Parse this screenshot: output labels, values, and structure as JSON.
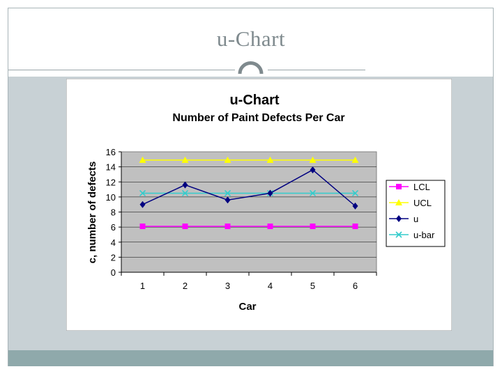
{
  "slide": {
    "title": "u-Chart"
  },
  "colors": {
    "frame_border": "#a8b4b8",
    "content_bg": "#c8d1d5",
    "bottom_band": "#8fa9ab",
    "plot_bg": "#c0c0c0",
    "ring": "#7f8a8e"
  },
  "chart_data": {
    "type": "line",
    "title": "u-Chart",
    "subtitle": "Number of Paint Defects Per Car",
    "xlabel": "Car",
    "ylabel": "c, number of defects",
    "categories": [
      "1",
      "2",
      "3",
      "4",
      "5",
      "6"
    ],
    "ylim": [
      0,
      16
    ],
    "yticks": [
      "0",
      "2",
      "4",
      "6",
      "8",
      "10",
      "12",
      "14",
      "16"
    ],
    "grid": true,
    "legend_position": "right",
    "series": [
      {
        "name": "LCL",
        "values": [
          6.1,
          6.1,
          6.1,
          6.1,
          6.1,
          6.1
        ],
        "color": "#ff00ff",
        "marker": "square"
      },
      {
        "name": "UCL",
        "values": [
          14.9,
          14.9,
          14.9,
          14.9,
          14.9,
          14.9
        ],
        "color": "#ffff00",
        "marker": "triangle"
      },
      {
        "name": "u",
        "values": [
          9.0,
          11.6,
          9.6,
          10.5,
          13.6,
          8.8
        ],
        "color": "#000080",
        "marker": "diamond"
      },
      {
        "name": "u-bar",
        "values": [
          10.5,
          10.5,
          10.5,
          10.5,
          10.5,
          10.5
        ],
        "color": "#33cccc",
        "marker": "x"
      }
    ]
  }
}
